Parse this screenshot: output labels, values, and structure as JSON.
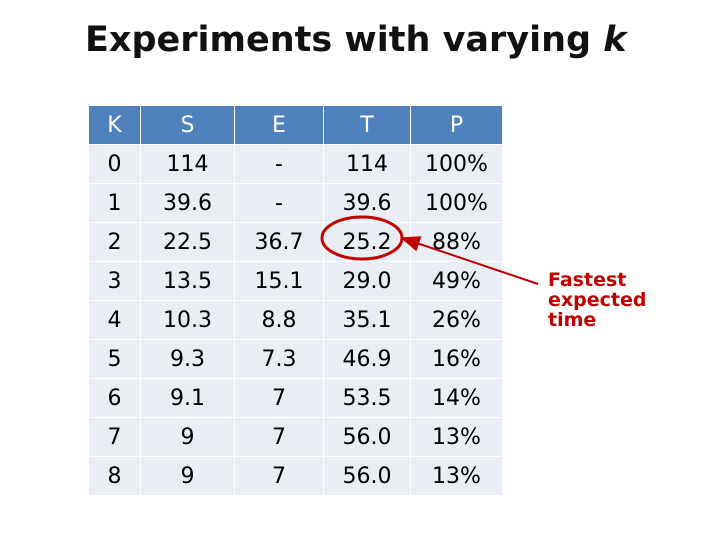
{
  "title": {
    "text": "Experiments with varying",
    "emphasis": "k"
  },
  "table": {
    "header": [
      "K",
      "S",
      "E",
      "T",
      "P"
    ],
    "rows": [
      [
        "0",
        "114",
        "-",
        "114",
        "100%"
      ],
      [
        "1",
        "39.6",
        "-",
        "39.6",
        "100%"
      ],
      [
        "2",
        "22.5",
        "36.7",
        "25.2",
        "88%"
      ],
      [
        "3",
        "13.5",
        "15.1",
        "29.0",
        "49%"
      ],
      [
        "4",
        "10.3",
        "8.8",
        "35.1",
        "26%"
      ],
      [
        "5",
        "9.3",
        "7.3",
        "46.9",
        "16%"
      ],
      [
        "6",
        "9.1",
        "7",
        "53.5",
        "14%"
      ],
      [
        "7",
        "9",
        "7",
        "56.0",
        "13%"
      ],
      [
        "8",
        "9",
        "7",
        "56.0",
        "13%"
      ]
    ]
  },
  "annotation": {
    "lines": [
      "Fastest",
      "expected",
      "time"
    ]
  }
}
